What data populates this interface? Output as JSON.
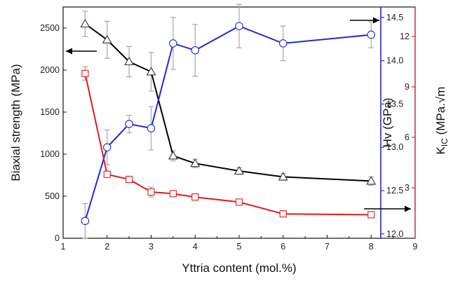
{
  "chart_data": {
    "type": "line",
    "xlabel": "Yttria content (mol.%)",
    "xlim": [
      1,
      9
    ],
    "x_ticks": [
      1,
      2,
      3,
      4,
      5,
      6,
      7,
      8,
      9
    ],
    "axes": {
      "left": {
        "label": "Biaxial strength (MPa)",
        "ylim": [
          0,
          2750
        ],
        "ticks": [
          0,
          500,
          1000,
          1500,
          2000,
          2500
        ],
        "color": "#000000"
      },
      "right1": {
        "label": "Hv (GPa)",
        "ylim": [
          11.95,
          14.62
        ],
        "ticks": [
          12.0,
          12.5,
          13.0,
          13.5,
          14.0,
          14.5
        ],
        "tick_labels": [
          "12.0",
          "12.5",
          "13.0",
          "13.5",
          "14.0",
          "14.5"
        ],
        "color": "#1f2bd1"
      },
      "right2": {
        "label_main": "K",
        "label_sub": "IC",
        "label_rest": " (MPa.√m",
        "ylim": [
          0,
          13.75
        ],
        "ticks": [
          3,
          6,
          9,
          12
        ],
        "color": "#e01b1b"
      }
    },
    "series": [
      {
        "id": "strength",
        "axis": "left",
        "marker": "triangle",
        "color": "#000000",
        "x": [
          1.5,
          2,
          2.5,
          3,
          3.5,
          4,
          5,
          6,
          8
        ],
        "y": [
          2550,
          2360,
          2100,
          1980,
          980,
          890,
          800,
          730,
          680
        ],
        "err": [
          150,
          220,
          180,
          230,
          60,
          50,
          40,
          40,
          50
        ]
      },
      {
        "id": "hardness",
        "axis": "right1",
        "marker": "circle",
        "color": "#1f2bd1",
        "x": [
          1.5,
          2,
          2.5,
          3,
          3.5,
          4,
          5,
          6,
          8
        ],
        "y": [
          12.15,
          13.0,
          13.27,
          13.22,
          14.2,
          14.12,
          14.4,
          14.2,
          14.3
        ],
        "err": [
          0.2,
          0.2,
          0.1,
          0.25,
          0.3,
          0.3,
          0.25,
          0.2,
          0.15
        ]
      },
      {
        "id": "toughness",
        "axis": "right2",
        "marker": "square",
        "color": "#e01b1b",
        "x": [
          1.5,
          2,
          2.5,
          3,
          3.5,
          4,
          5,
          6,
          8
        ],
        "y": [
          9.8,
          3.8,
          3.5,
          2.75,
          2.65,
          2.45,
          2.15,
          1.45,
          1.4
        ],
        "err": [
          0.4,
          0.15,
          0.1,
          0.3,
          0.15,
          0.1,
          0.15,
          0.1,
          0.1
        ]
      }
    ],
    "arrows": [
      {
        "series": "strength",
        "direction": "left"
      },
      {
        "series": "hardness",
        "direction": "right"
      },
      {
        "series": "toughness",
        "direction": "right"
      }
    ]
  }
}
